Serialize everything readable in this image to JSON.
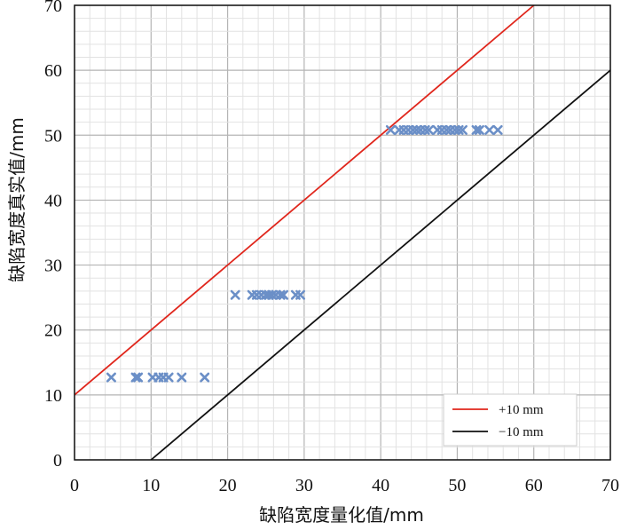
{
  "chart_data": {
    "type": "scatter",
    "title": "",
    "xlabel": "缺陷宽度量化值/mm",
    "ylabel": "缺陷宽度真实值/mm",
    "xlim": [
      0,
      70
    ],
    "ylim": [
      0,
      70
    ],
    "xticks": [
      0,
      10,
      20,
      30,
      40,
      50,
      60,
      70
    ],
    "yticks": [
      0,
      10,
      20,
      30,
      40,
      50,
      60,
      70
    ],
    "grid": true,
    "minor_grid_step": 2,
    "legend_position": "bottom-right",
    "scatter": {
      "color": "#6b8fc7",
      "marker": "x",
      "points": [
        [
          4.8,
          12.7
        ],
        [
          8.0,
          12.7
        ],
        [
          8.3,
          12.7
        ],
        [
          10.2,
          12.7
        ],
        [
          11.0,
          12.7
        ],
        [
          11.6,
          12.7
        ],
        [
          12.3,
          12.7
        ],
        [
          14.0,
          12.7
        ],
        [
          17.0,
          12.7
        ],
        [
          21.0,
          25.4
        ],
        [
          23.2,
          25.4
        ],
        [
          23.8,
          25.4
        ],
        [
          24.4,
          25.4
        ],
        [
          25.0,
          25.4
        ],
        [
          25.4,
          25.4
        ],
        [
          25.8,
          25.4
        ],
        [
          26.3,
          25.4
        ],
        [
          26.9,
          25.4
        ],
        [
          27.3,
          25.4
        ],
        [
          28.9,
          25.4
        ],
        [
          29.5,
          25.4
        ],
        [
          41.3,
          50.8
        ],
        [
          42.4,
          50.8
        ],
        [
          43.0,
          50.8
        ],
        [
          43.6,
          50.8
        ],
        [
          44.2,
          50.8
        ],
        [
          44.7,
          50.8
        ],
        [
          45.2,
          50.8
        ],
        [
          45.8,
          50.8
        ],
        [
          46.3,
          50.8
        ],
        [
          47.4,
          50.8
        ],
        [
          48.0,
          50.8
        ],
        [
          48.6,
          50.8
        ],
        [
          49.1,
          50.8
        ],
        [
          49.7,
          50.8
        ],
        [
          50.2,
          50.8
        ],
        [
          50.7,
          50.8
        ],
        [
          52.5,
          50.8
        ],
        [
          52.9,
          50.8
        ],
        [
          54.2,
          50.8
        ],
        [
          55.3,
          50.8
        ]
      ]
    },
    "series": [
      {
        "name": "+10 mm",
        "color": "#e0261c",
        "x": [
          0,
          60
        ],
        "y": [
          10,
          70
        ]
      },
      {
        "name": "−10 mm",
        "color": "#111111",
        "x": [
          10,
          70
        ],
        "y": [
          0,
          60
        ]
      }
    ]
  }
}
